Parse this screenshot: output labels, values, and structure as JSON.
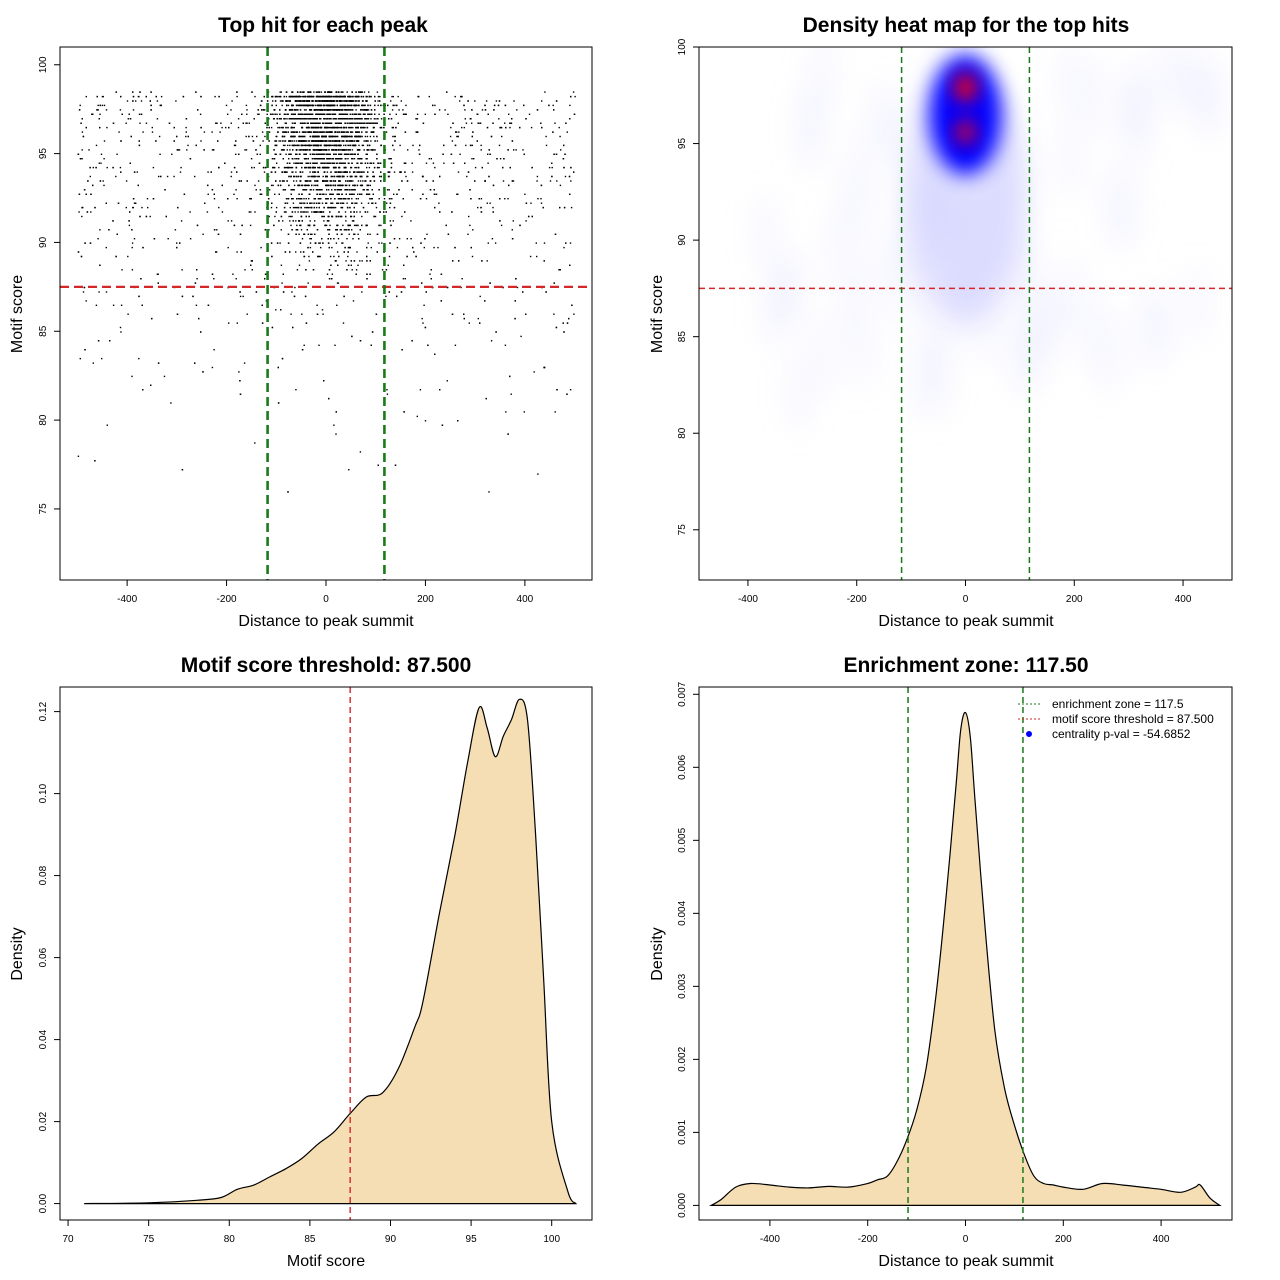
{
  "colors": {
    "green": "#1a7a1a",
    "red": "#d62728",
    "fill": "#f5deb3",
    "points": "#000000",
    "heat_low": "#ffffff",
    "heat_mid": "#0000ff",
    "heat_high": "#ff0000"
  },
  "chart_data": [
    {
      "id": "scatter",
      "type": "scatter",
      "title": "Top hit for each peak",
      "xlabel": "Distance to peak summit",
      "ylabel": "Motif score",
      "xlim": [
        -535,
        535
      ],
      "ylim": [
        71,
        101
      ],
      "xticks": [
        -400,
        -200,
        0,
        200,
        400
      ],
      "yticks": [
        75,
        80,
        85,
        90,
        95,
        100
      ],
      "vlines": [
        -117.5,
        117.5
      ],
      "hline": 87.5,
      "point_count": 5200,
      "x_range": [
        -500,
        500
      ],
      "y_range": [
        72.3,
        100
      ],
      "y_mode": 98.5,
      "central_fraction": 0.7
    },
    {
      "id": "heatmap",
      "type": "heatmap",
      "title": "Density heat map for the top hits",
      "xlabel": "Distance to peak summit",
      "ylabel": "Motif score",
      "xlim": [
        -490,
        490
      ],
      "ylim": [
        72.4,
        100
      ],
      "xticks": [
        -400,
        -200,
        0,
        200,
        400
      ],
      "yticks": [
        75,
        80,
        85,
        90,
        95,
        100
      ],
      "vlines": [
        -117.5,
        117.5
      ],
      "hline": 87.5,
      "peak": {
        "x": 0,
        "y": 97.5
      }
    },
    {
      "id": "score_density",
      "type": "area",
      "title": "Motif score threshold: 87.500",
      "xlabel": "Motif score",
      "ylabel": "Density",
      "xlim": [
        69.5,
        102.5
      ],
      "ylim": [
        -0.004,
        0.126
      ],
      "xticks": [
        70,
        75,
        80,
        85,
        90,
        95,
        100
      ],
      "yticks": [
        0.0,
        0.02,
        0.04,
        0.06,
        0.08,
        0.1,
        0.12
      ],
      "ytick_labels": [
        "0.00",
        "0.02",
        "0.04",
        "0.06",
        "0.08",
        "0.10",
        "0.12"
      ],
      "vline": 87.5,
      "x": [
        71,
        75,
        78,
        79.5,
        80.5,
        81.5,
        82.5,
        83.5,
        84.5,
        85.5,
        86.5,
        87.5,
        88.5,
        89.5,
        90.5,
        91.5,
        92,
        93,
        94,
        94.8,
        95.5,
        96,
        96.5,
        97,
        97.5,
        98,
        98.5,
        99,
        99.5,
        100,
        101,
        101.5
      ],
      "y": [
        0.0,
        0.0002,
        0.0008,
        0.0015,
        0.0035,
        0.0045,
        0.0065,
        0.0085,
        0.011,
        0.0145,
        0.0175,
        0.022,
        0.026,
        0.027,
        0.033,
        0.043,
        0.049,
        0.07,
        0.09,
        0.108,
        0.121,
        0.116,
        0.109,
        0.114,
        0.118,
        0.123,
        0.118,
        0.09,
        0.055,
        0.02,
        0.003,
        0.0
      ]
    },
    {
      "id": "distance_density",
      "type": "area",
      "title": "Enrichment zone: 117.50",
      "xlabel": "Distance to peak summit",
      "ylabel": "Density",
      "xlim": [
        -545,
        545
      ],
      "ylim": [
        -0.0002,
        0.0071
      ],
      "xticks": [
        -400,
        -200,
        0,
        200,
        400
      ],
      "yticks": [
        0.0,
        0.001,
        0.002,
        0.003,
        0.004,
        0.005,
        0.006,
        0.007
      ],
      "ytick_labels": [
        "0.000",
        "0.001",
        "0.002",
        "0.003",
        "0.004",
        "0.005",
        "0.006",
        "0.007"
      ],
      "vlines": [
        -117.5,
        117.5
      ],
      "x": [
        -520,
        -500,
        -470,
        -440,
        -400,
        -360,
        -320,
        -280,
        -240,
        -200,
        -180,
        -160,
        -140,
        -120,
        -100,
        -80,
        -60,
        -40,
        -20,
        -10,
        0,
        10,
        20,
        40,
        60,
        80,
        100,
        120,
        140,
        160,
        180,
        200,
        240,
        280,
        320,
        360,
        400,
        440,
        470,
        480,
        500,
        520
      ],
      "y": [
        0.0,
        8e-05,
        0.00025,
        0.0003,
        0.00028,
        0.00025,
        0.00024,
        0.00026,
        0.00025,
        0.0003,
        0.00035,
        0.0004,
        0.0006,
        0.0009,
        0.0013,
        0.0019,
        0.0029,
        0.0042,
        0.0057,
        0.0065,
        0.00675,
        0.0064,
        0.0055,
        0.0038,
        0.0024,
        0.0016,
        0.0011,
        0.0007,
        0.0004,
        0.0003,
        0.00028,
        0.00025,
        0.00022,
        0.0003,
        0.00028,
        0.00025,
        0.00022,
        0.00018,
        0.00025,
        0.00028,
        0.0001,
        0.0
      ]
    }
  ],
  "legend": [
    {
      "label": "enrichment zone = 117.5",
      "marker": "dotted-green-line"
    },
    {
      "label": "motif score threshold = 87.500",
      "marker": "dotted-red-line"
    },
    {
      "label": "centrality p-val = -54.6852",
      "marker": "blue-dot"
    }
  ]
}
